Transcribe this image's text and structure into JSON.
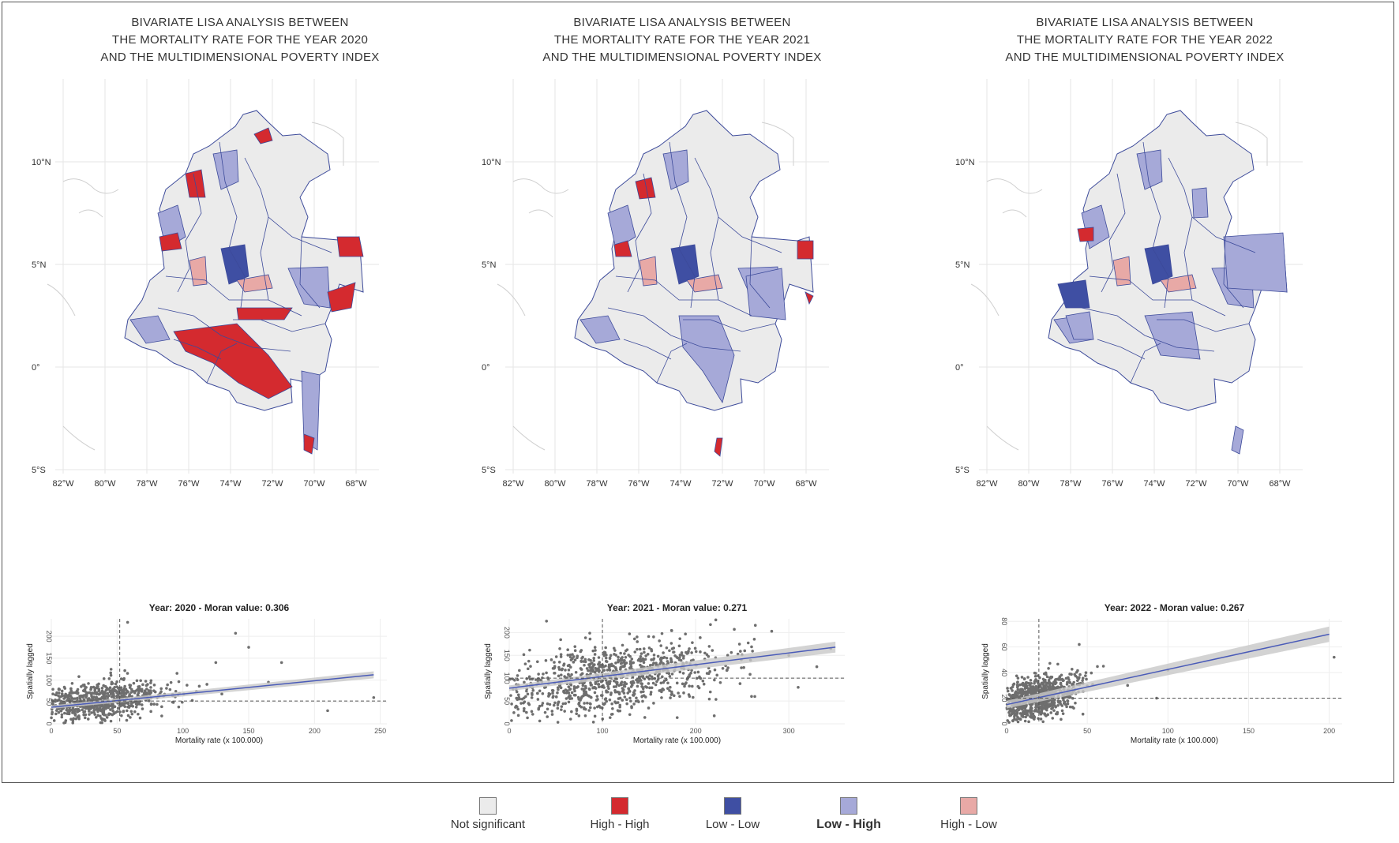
{
  "panels": [
    {
      "title_lines": [
        "BIVARIATE LISA ANALYSIS BETWEEN",
        "THE MORTALITY RATE FOR THE YEAR 2020",
        "AND THE MULTIDIMENSIONAL POVERTY INDEX"
      ],
      "scatter": {
        "title": "Year: 2020 - Moran value: 0.306",
        "xlabel": "Mortality rate (x 100.000)",
        "ylabel": "Spatially lagged",
        "xticks": [
          0,
          50,
          100,
          150,
          200,
          250
        ],
        "yticks": [
          0,
          50,
          100,
          150,
          200
        ],
        "xlim": [
          0,
          255
        ],
        "ylim": [
          0,
          240
        ],
        "vline": 52,
        "hline": 52,
        "fit": [
          [
            0,
            38
          ],
          [
            245,
            112
          ]
        ],
        "band": 4,
        "seed": 11,
        "cluster": {
          "xmean": 40,
          "xsd": 24,
          "ymean": 55,
          "ysd": 22,
          "n": 700,
          "slope": 0.3
        },
        "outliers": [
          [
            58,
            232
          ],
          [
            140,
            207
          ],
          [
            150,
            175
          ],
          [
            175,
            140
          ],
          [
            245,
            60
          ],
          [
            210,
            30
          ],
          [
            125,
            140
          ],
          [
            165,
            95
          ]
        ]
      }
    },
    {
      "title_lines": [
        "BIVARIATE LISA ANALYSIS BETWEEN",
        "THE MORTALITY RATE FOR THE YEAR 2021",
        "AND THE MULTIDIMENSIONAL POVERTY INDEX"
      ],
      "scatter": {
        "title": "Year: 2021 - Moran value: 0.271",
        "xlabel": "Mortality rate (x 100.000)",
        "ylabel": "Spatially lagged",
        "xticks": [
          0,
          100,
          200,
          300
        ],
        "yticks": [
          0,
          50,
          100,
          150,
          200
        ],
        "xlim": [
          0,
          360
        ],
        "ylim": [
          0,
          230
        ],
        "vline": 100,
        "hline": 100,
        "fit": [
          [
            0,
            78
          ],
          [
            350,
            168
          ]
        ],
        "band": 6,
        "seed": 23,
        "cluster": {
          "xmean": 110,
          "xsd": 60,
          "ymean": 100,
          "ysd": 38,
          "n": 900,
          "slope": 0.26
        },
        "outliers": [
          [
            40,
            225
          ],
          [
            345,
            165
          ],
          [
            310,
            80
          ],
          [
            260,
            60
          ],
          [
            300,
            150
          ],
          [
            330,
            125
          ]
        ]
      }
    },
    {
      "title_lines": [
        "BIVARIATE LISA ANALYSIS BETWEEN",
        "THE MORTALITY RATE FOR THE YEAR 2022",
        "AND THE MULTIDIMENSIONAL POVERTY INDEX"
      ],
      "scatter": {
        "title": "Year: 2022 - Moran value: 0.267",
        "xlabel": "Mortality rate (x 100.000)",
        "ylabel": "Spatially lagged",
        "xticks": [
          0,
          50,
          100,
          150,
          200
        ],
        "yticks": [
          0,
          20,
          40,
          60,
          80
        ],
        "xlim": [
          0,
          208
        ],
        "ylim": [
          0,
          82
        ],
        "vline": 20,
        "hline": 20,
        "fit": [
          [
            0,
            15
          ],
          [
            200,
            70
          ]
        ],
        "band": 3,
        "seed": 37,
        "cluster": {
          "xmean": 20,
          "xsd": 12,
          "ymean": 21,
          "ysd": 8,
          "n": 750,
          "slope": 0.28
        },
        "outliers": [
          [
            203,
            52
          ],
          [
            100,
            42
          ],
          [
            45,
            62
          ],
          [
            60,
            45
          ],
          [
            75,
            30
          ],
          [
            93,
            20
          ]
        ]
      }
    }
  ],
  "map_axes": {
    "lat_labels": [
      "10°N",
      "5°N",
      "0°",
      "5°S"
    ],
    "lon_labels": [
      "82°W",
      "80°W",
      "78°W",
      "76°W",
      "74°W",
      "72°W",
      "70°W",
      "68°W"
    ]
  },
  "colors": {
    "not_significant": "#ebebeb",
    "high_high": "#d42a2f",
    "low_low": "#3f4fa3",
    "low_high": "#a6a9d8",
    "high_low": "#e8a9a6",
    "border": "#3c4a9a",
    "point": "#6e6e6e",
    "fit": "#4a5bb8",
    "band": "#c8c8c8"
  },
  "legend": [
    {
      "label": "Not significant",
      "color_key": "not_significant",
      "bold": false
    },
    {
      "label": "High - High",
      "color_key": "high_high",
      "bold": false
    },
    {
      "label": "Low - Low",
      "color_key": "low_low",
      "bold": false
    },
    {
      "label": "Low - High",
      "color_key": "low_high",
      "bold": true
    },
    {
      "label": "High - Low",
      "color_key": "high_low",
      "bold": false
    }
  ]
}
